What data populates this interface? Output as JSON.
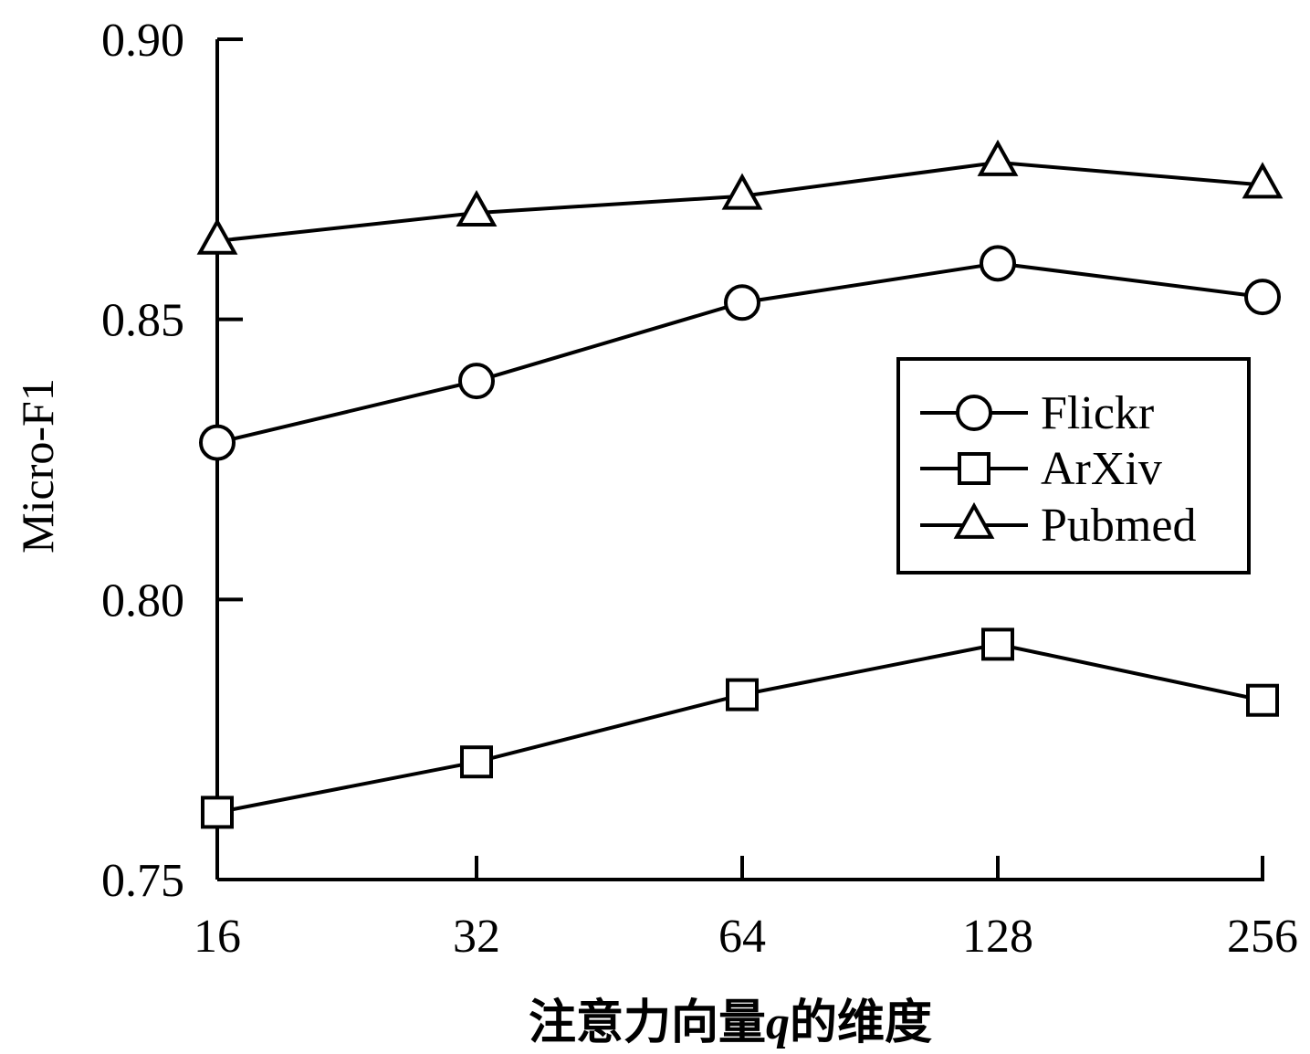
{
  "chart_data": {
    "type": "line",
    "title": "",
    "xlabel": "注意力向量q的维度",
    "xlabel_parts": {
      "before": "注意力向量",
      "var": "q",
      "after": "的维度"
    },
    "ylabel": "Micro-F1",
    "categories": [
      "16",
      "32",
      "64",
      "128",
      "256"
    ],
    "x_scale": "log2",
    "ylim": [
      0.75,
      0.9
    ],
    "yticks": [
      "0.75",
      "0.80",
      "0.85",
      "0.90"
    ],
    "grid": false,
    "legend_position": "center-right",
    "series": [
      {
        "name": "Flickr",
        "marker": "circle",
        "values": [
          0.828,
          0.839,
          0.853,
          0.86,
          0.854
        ]
      },
      {
        "name": "ArXiv",
        "marker": "square",
        "values": [
          0.762,
          0.771,
          0.783,
          0.792,
          0.782
        ]
      },
      {
        "name": "Pubmed",
        "marker": "triangle",
        "values": [
          0.864,
          0.869,
          0.872,
          0.878,
          0.874
        ]
      }
    ],
    "colors": {
      "line": "#000000",
      "background": "#ffffff"
    }
  }
}
